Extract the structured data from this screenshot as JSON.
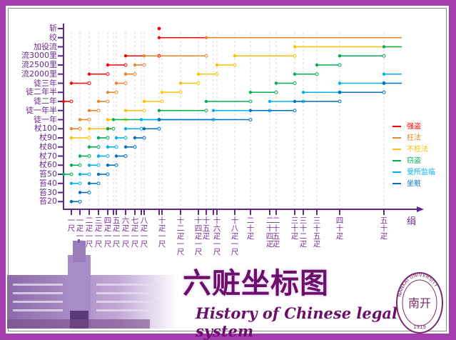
{
  "title": "六赃坐标图",
  "subtitle": "History of Chinese legal system",
  "seal_text": {
    "top": "NANKAI UNIVERSITY",
    "center": "南开",
    "year": "1919"
  },
  "chart_data": {
    "type": "step",
    "title": "六赃坐标图",
    "xlabel": "绢",
    "ylabel": "",
    "x_unit_note": "x values in 尺 (1 疋 = 40 尺); axis is non-linear, categorical ticks",
    "x_ticks": [
      {
        "value": 1,
        "label": "一尺"
      },
      {
        "value": 41,
        "label": "一疋一尺"
      },
      {
        "value": 81,
        "label": "二疋一尺"
      },
      {
        "value": 121,
        "label": "三疋一尺"
      },
      {
        "value": 161,
        "label": "四疋一尺"
      },
      {
        "value": 200,
        "label": ""
      },
      {
        "value": 201,
        "label": "五疋一尺"
      },
      {
        "value": 241,
        "label": "六疋一尺"
      },
      {
        "value": 281,
        "label": "七疋一尺"
      },
      {
        "value": 320,
        "label": ""
      },
      {
        "value": 321,
        "label": "八疋一尺"
      },
      {
        "value": 400,
        "label": ""
      },
      {
        "value": 401,
        "label": "十疋一尺"
      },
      {
        "value": 481,
        "label": "十二疋一尺"
      },
      {
        "value": 561,
        "label": "十四疋一尺"
      },
      {
        "value": 600,
        "label": "十五疋"
      },
      {
        "value": 640,
        "label": ""
      },
      {
        "value": 641,
        "label": "十六疋一尺"
      },
      {
        "value": 721,
        "label": "十八疋一尺"
      },
      {
        "value": 800,
        "label": "二十疋"
      },
      {
        "value": 960,
        "label": "二十四疋"
      },
      {
        "value": 1000,
        "label": "二十五疋"
      },
      {
        "value": 1200,
        "label": "三十疋"
      },
      {
        "value": 1280,
        "label": "三十二疋"
      },
      {
        "value": 1400,
        "label": "三十五疋"
      },
      {
        "value": 1600,
        "label": "四十疋"
      },
      {
        "value": 2000,
        "label": "五十疋"
      }
    ],
    "y_levels": [
      "斩",
      "绞",
      "加役流",
      "流3000里",
      "流2500里",
      "流2000里",
      "徒三年",
      "徒二年半",
      "徒二年",
      "徒一年半",
      "徒一年",
      "杖100",
      "杖90",
      "杖80",
      "杖70",
      "杖60",
      "笞50",
      "笞40",
      "笞30",
      "笞20"
    ],
    "legend_position": "right",
    "series": [
      {
        "name": "强盗",
        "color": "#ff0000",
        "points": [
          [
            400,
            "斩"
          ]
        ],
        "segments": [
          [
            0,
            1,
            "徒二年"
          ],
          [
            1,
            81,
            "徒三年"
          ],
          [
            81,
            161,
            "流2000里"
          ],
          [
            161,
            241,
            "流2500里"
          ],
          [
            241,
            400,
            "流3000里"
          ],
          [
            400,
            null,
            "绞"
          ]
        ]
      },
      {
        "name": "枉法",
        "color": "#e8862a",
        "segments": [
          [
            1,
            41,
            "杖100"
          ],
          [
            41,
            81,
            "徒一年"
          ],
          [
            81,
            121,
            "徒一年半"
          ],
          [
            121,
            161,
            "徒二年"
          ],
          [
            161,
            201,
            "徒二年半"
          ],
          [
            201,
            241,
            "徒三年"
          ],
          [
            241,
            281,
            "流2000里"
          ],
          [
            281,
            321,
            "流2500里"
          ],
          [
            321,
            600,
            "流3000里"
          ],
          [
            600,
            null,
            "绞"
          ]
        ]
      },
      {
        "name": "不枉法",
        "color": "#ffc000",
        "segments": [
          [
            1,
            81,
            "杖90"
          ],
          [
            81,
            161,
            "杖100"
          ],
          [
            161,
            241,
            "徒一年"
          ],
          [
            241,
            321,
            "徒一年半"
          ],
          [
            321,
            401,
            "徒二年"
          ],
          [
            401,
            481,
            "徒二年半"
          ],
          [
            481,
            561,
            "徒三年"
          ],
          [
            561,
            641,
            "流2000里"
          ],
          [
            641,
            721,
            "流2500里"
          ],
          [
            721,
            1200,
            "流3000里"
          ],
          [
            1200,
            null,
            "加役流"
          ]
        ]
      },
      {
        "name": "窃盗",
        "color": "#00b050",
        "segments": [
          [
            0,
            1,
            "笞50"
          ],
          [
            1,
            41,
            "杖60"
          ],
          [
            41,
            81,
            "杖70"
          ],
          [
            81,
            121,
            "杖80"
          ],
          [
            121,
            161,
            "杖90"
          ],
          [
            161,
            200,
            "杖100"
          ],
          [
            200,
            400,
            "徒一年"
          ],
          [
            400,
            600,
            "徒一年半"
          ],
          [
            600,
            800,
            "徒二年"
          ],
          [
            800,
            1000,
            "徒二年半"
          ],
          [
            1000,
            1200,
            "徒三年"
          ],
          [
            1200,
            1400,
            "流2000里"
          ],
          [
            1400,
            1600,
            "流2500里"
          ],
          [
            1600,
            2000,
            "流3000里"
          ],
          [
            2000,
            null,
            "加役流"
          ]
        ]
      },
      {
        "name": "受所监临",
        "color": "#00b0f0",
        "segments": [
          [
            1,
            41,
            "笞40"
          ],
          [
            41,
            81,
            "笞50"
          ],
          [
            81,
            121,
            "杖60"
          ],
          [
            121,
            161,
            "杖70"
          ],
          [
            161,
            201,
            "杖80"
          ],
          [
            201,
            241,
            "杖90"
          ],
          [
            241,
            320,
            "杖100"
          ],
          [
            320,
            640,
            "徒一年"
          ],
          [
            640,
            960,
            "徒一年半"
          ],
          [
            960,
            1280,
            "徒二年"
          ],
          [
            1280,
            1600,
            "徒二年半"
          ],
          [
            1600,
            2000,
            "徒三年"
          ],
          [
            2000,
            null,
            "流2000里"
          ]
        ]
      },
      {
        "name": "坐赃",
        "color": "#0070c0",
        "segments": [
          [
            1,
            41,
            "笞20"
          ],
          [
            41,
            81,
            "笞30"
          ],
          [
            81,
            121,
            "笞40"
          ],
          [
            121,
            161,
            "笞50"
          ],
          [
            161,
            201,
            "杖60"
          ],
          [
            201,
            241,
            "杖70"
          ],
          [
            241,
            281,
            "杖80"
          ],
          [
            281,
            321,
            "杖90"
          ],
          [
            321,
            400,
            "杖100"
          ],
          [
            400,
            800,
            "徒一年"
          ],
          [
            800,
            1200,
            "徒一年半"
          ],
          [
            1200,
            1600,
            "徒二年"
          ],
          [
            1600,
            2000,
            "徒二年半"
          ],
          [
            2000,
            null,
            "徒三年"
          ]
        ]
      }
    ]
  }
}
